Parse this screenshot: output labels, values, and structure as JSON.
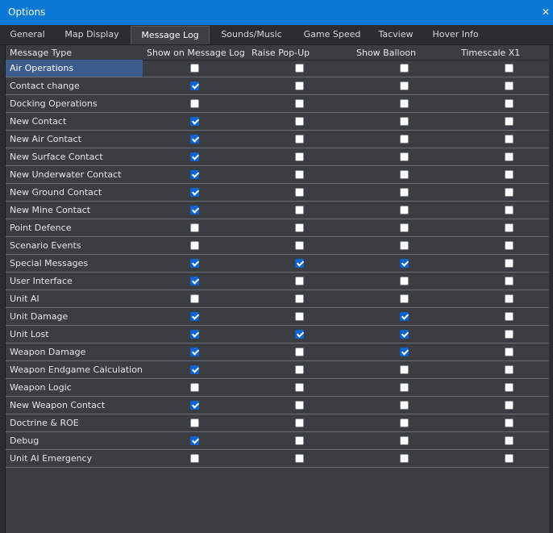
{
  "window": {
    "title": "Options",
    "close_glyph": "✕"
  },
  "tabs": [
    {
      "label": "General",
      "active": false
    },
    {
      "label": "Map Display",
      "active": false
    },
    {
      "label": "Message Log",
      "active": true
    },
    {
      "label": "Sounds/Music",
      "active": false
    },
    {
      "label": "Game Speed",
      "active": false
    },
    {
      "label": "Tacview",
      "active": false
    },
    {
      "label": "Hover Info",
      "active": false
    }
  ],
  "columns": [
    "Message Type",
    "Show on Message Log",
    "Raise Pop-Up",
    "Show Balloon",
    "Timescale X1"
  ],
  "rows": [
    {
      "label": "Air Operations",
      "selected": true,
      "values": [
        false,
        false,
        false,
        false
      ]
    },
    {
      "label": "Contact change",
      "selected": false,
      "values": [
        true,
        false,
        false,
        false
      ]
    },
    {
      "label": "Docking Operations",
      "selected": false,
      "values": [
        false,
        false,
        false,
        false
      ]
    },
    {
      "label": "New Contact",
      "selected": false,
      "values": [
        true,
        false,
        false,
        false
      ]
    },
    {
      "label": "New Air Contact",
      "selected": false,
      "values": [
        true,
        false,
        false,
        false
      ]
    },
    {
      "label": "New Surface Contact",
      "selected": false,
      "values": [
        true,
        false,
        false,
        false
      ]
    },
    {
      "label": "New Underwater Contact",
      "selected": false,
      "values": [
        true,
        false,
        false,
        false
      ]
    },
    {
      "label": "New Ground Contact",
      "selected": false,
      "values": [
        true,
        false,
        false,
        false
      ]
    },
    {
      "label": "New Mine Contact",
      "selected": false,
      "values": [
        true,
        false,
        false,
        false
      ]
    },
    {
      "label": "Point Defence",
      "selected": false,
      "values": [
        false,
        false,
        false,
        false
      ]
    },
    {
      "label": "Scenario Events",
      "selected": false,
      "values": [
        false,
        false,
        false,
        false
      ]
    },
    {
      "label": "Special Messages",
      "selected": false,
      "values": [
        true,
        true,
        true,
        false
      ]
    },
    {
      "label": "User Interface",
      "selected": false,
      "values": [
        true,
        false,
        false,
        false
      ]
    },
    {
      "label": "Unit AI",
      "selected": false,
      "values": [
        false,
        false,
        false,
        false
      ]
    },
    {
      "label": "Unit Damage",
      "selected": false,
      "values": [
        true,
        false,
        true,
        false
      ]
    },
    {
      "label": "Unit Lost",
      "selected": false,
      "values": [
        true,
        true,
        true,
        false
      ]
    },
    {
      "label": "Weapon Damage",
      "selected": false,
      "values": [
        true,
        false,
        true,
        false
      ]
    },
    {
      "label": "Weapon Endgame Calculations",
      "selected": false,
      "values": [
        true,
        false,
        false,
        false
      ]
    },
    {
      "label": "Weapon Logic",
      "selected": false,
      "values": [
        false,
        false,
        false,
        false
      ]
    },
    {
      "label": "New Weapon Contact",
      "selected": false,
      "values": [
        true,
        false,
        false,
        false
      ]
    },
    {
      "label": "Doctrine & ROE",
      "selected": false,
      "values": [
        false,
        false,
        false,
        false
      ]
    },
    {
      "label": "Debug",
      "selected": false,
      "values": [
        true,
        false,
        false,
        false
      ]
    },
    {
      "label": "Unit AI Emergency",
      "selected": false,
      "values": [
        false,
        false,
        false,
        false
      ]
    }
  ],
  "colors": {
    "titlebar": "#0a78d7",
    "checkbox_checked": "#0a64d2",
    "selection": "#3b5c8d"
  }
}
